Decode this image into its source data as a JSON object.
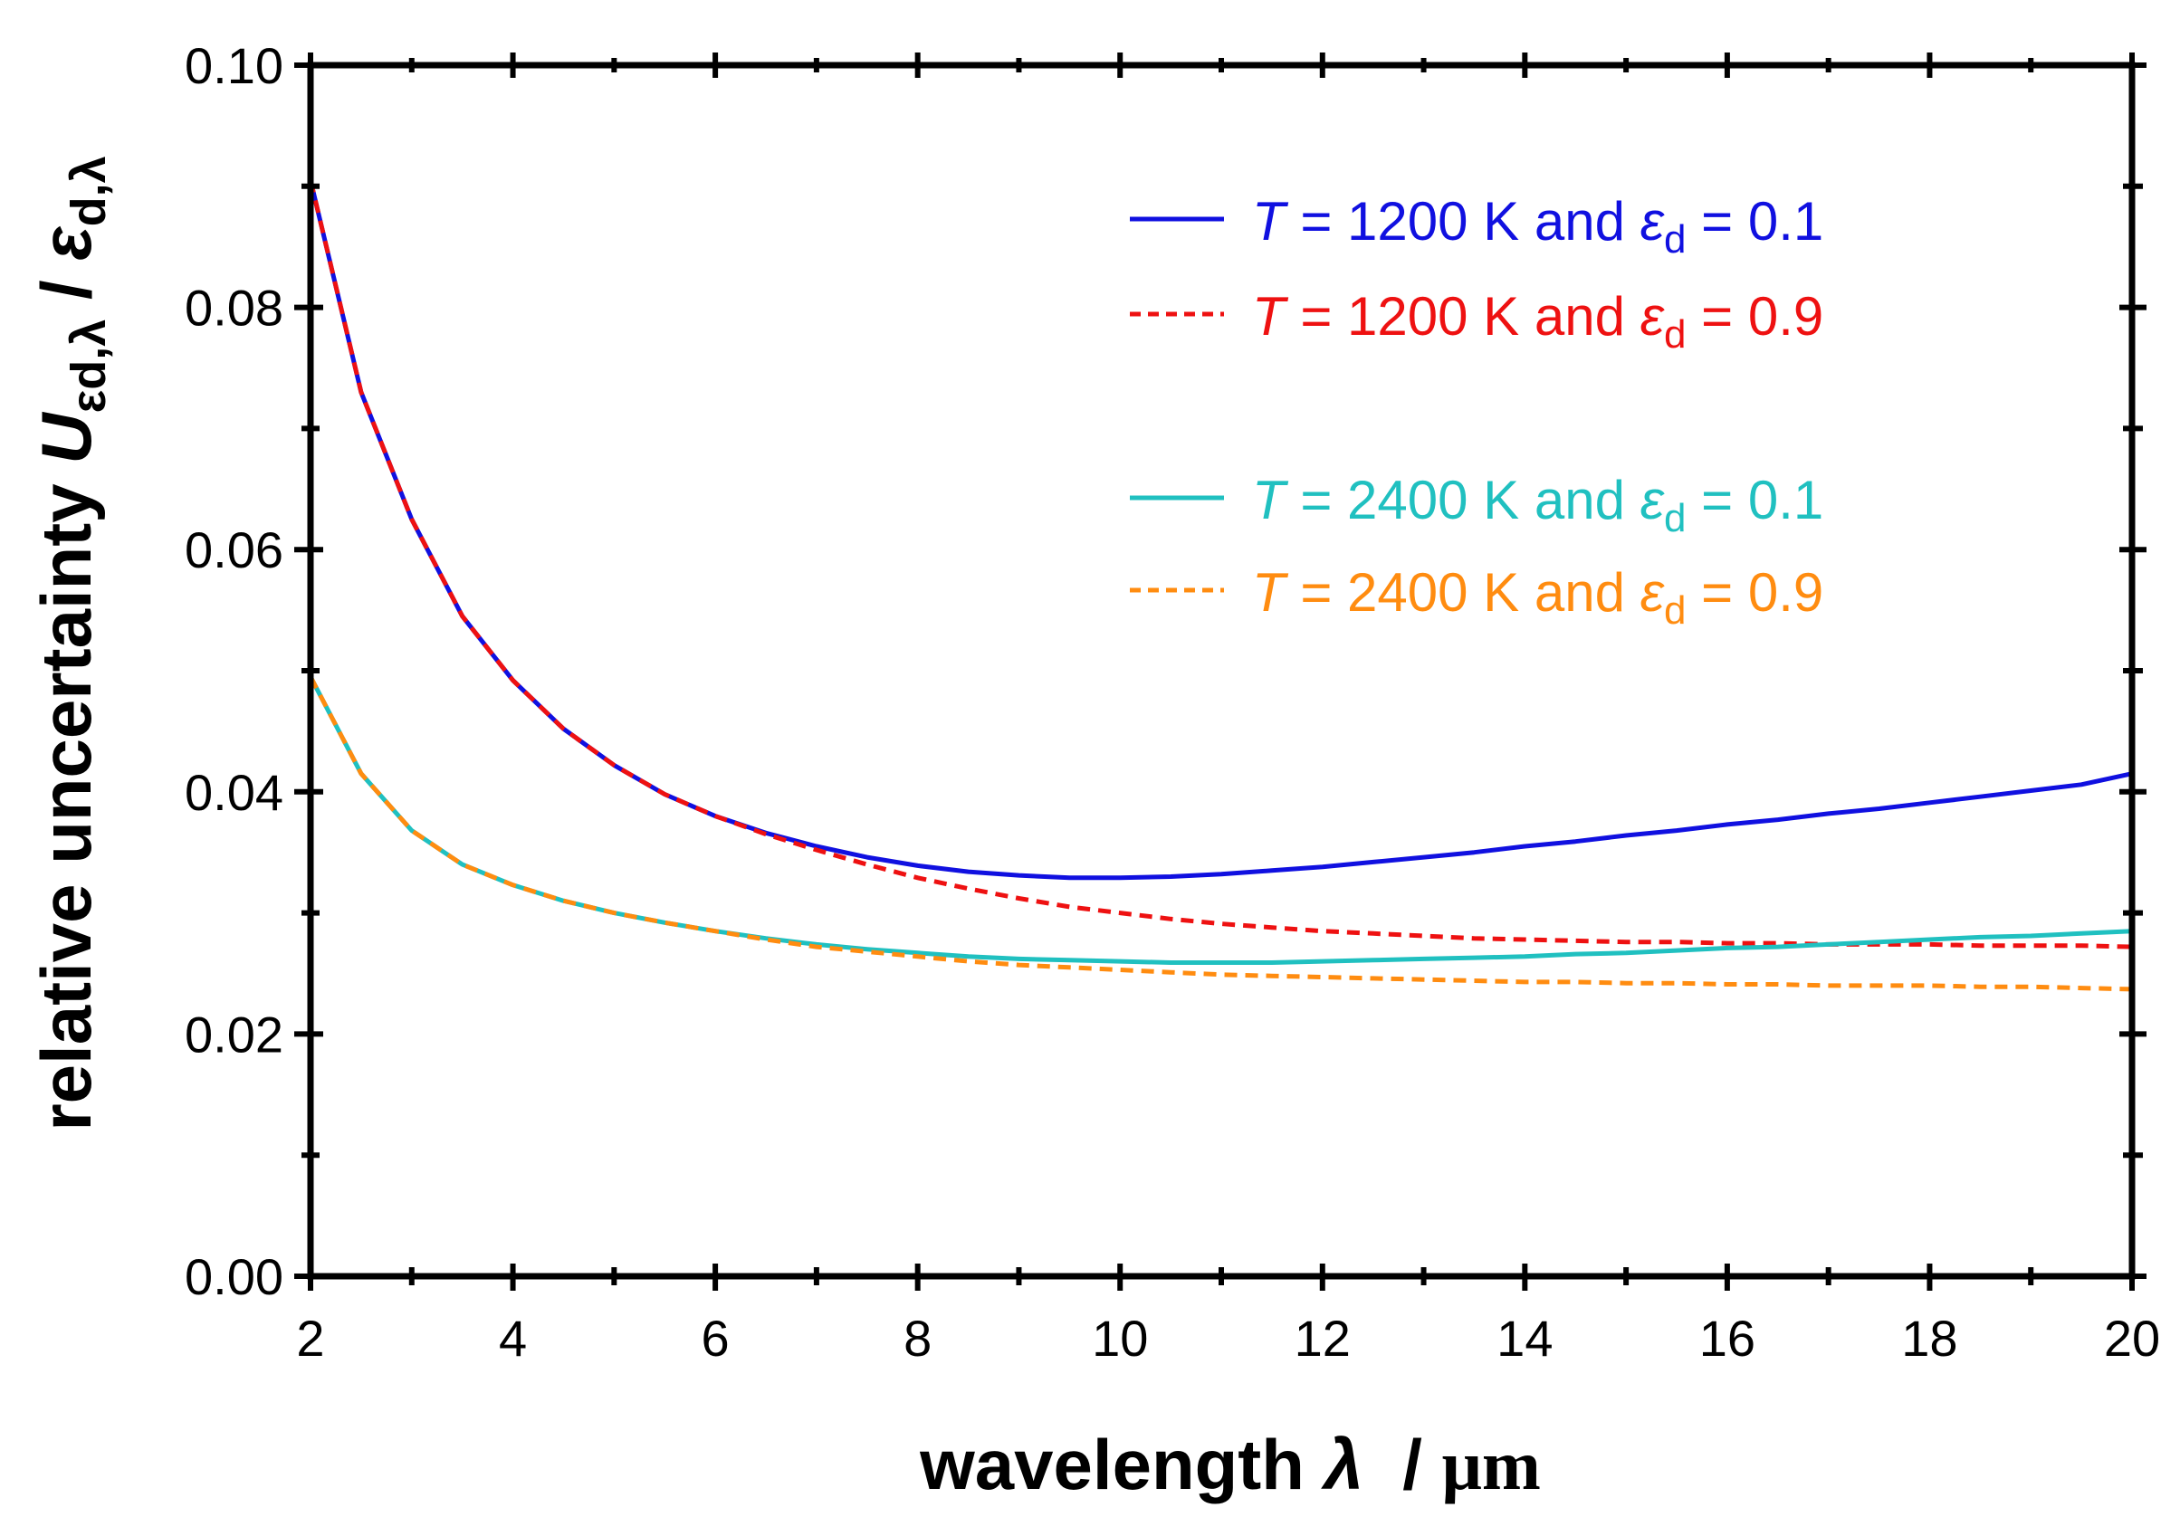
{
  "chart_data": {
    "type": "line",
    "xlabel": {
      "main": "wavelength ",
      "symbol": "λ",
      "sep": "  / ",
      "unit": "μm"
    },
    "ylabel": {
      "main": "relative uncertainty ",
      "U": "U",
      "U_sub": "εd,λ",
      "sep": " / ",
      "eps": "ε",
      "eps_sub": "d,λ"
    },
    "xlim": [
      2,
      20
    ],
    "ylim": [
      0.0,
      0.1
    ],
    "x_ticks": [
      2,
      4,
      6,
      8,
      10,
      12,
      14,
      16,
      18,
      20
    ],
    "x_tick_labels": [
      "2",
      "4",
      "6",
      "8",
      "10",
      "12",
      "14",
      "16",
      "18",
      "20"
    ],
    "y_ticks": [
      0.0,
      0.02,
      0.04,
      0.06,
      0.08,
      0.1
    ],
    "y_tick_labels": [
      "0.00",
      "0.02",
      "0.04",
      "0.06",
      "0.08",
      "0.10"
    ],
    "grid": false,
    "legend_position": "top-right",
    "series": [
      {
        "name": "T = 1200 K and εd = 0.1",
        "legend": {
          "T": "T",
          "mid": " = 1200 K and ",
          "eps": "ε",
          "sub": "d",
          "end": " = 0.1"
        },
        "color": "#1010e0",
        "dash": "solid",
        "x": [
          2,
          2.5,
          3,
          3.5,
          4,
          4.5,
          5,
          5.5,
          6,
          6.5,
          7,
          7.5,
          8,
          8.5,
          9,
          9.5,
          10,
          10.5,
          11,
          11.5,
          12,
          12.5,
          13,
          13.5,
          14,
          14.5,
          15,
          15.5,
          16,
          16.5,
          17,
          17.5,
          18,
          18.5,
          19,
          19.5,
          20
        ],
        "y": [
          0.0905,
          0.073,
          0.0625,
          0.0545,
          0.0492,
          0.0452,
          0.0422,
          0.0398,
          0.038,
          0.0366,
          0.0355,
          0.0346,
          0.0339,
          0.0334,
          0.0331,
          0.0329,
          0.0329,
          0.033,
          0.0332,
          0.0335,
          0.0338,
          0.0342,
          0.0346,
          0.035,
          0.0355,
          0.0359,
          0.0364,
          0.0368,
          0.0373,
          0.0377,
          0.0382,
          0.0386,
          0.0391,
          0.0396,
          0.0401,
          0.0406,
          0.0415
        ]
      },
      {
        "name": "T = 1200 K and εd = 0.9",
        "legend": {
          "T": "T",
          "mid": " = 1200 K and ",
          "eps": "ε",
          "sub": "d",
          "end": " = 0.9"
        },
        "color": "#ee1111",
        "dash": "dashed",
        "x": [
          2,
          2.5,
          3,
          3.5,
          4,
          4.5,
          5,
          5.5,
          6,
          6.5,
          7,
          7.5,
          8,
          8.5,
          9,
          9.5,
          10,
          10.5,
          11,
          11.5,
          12,
          12.5,
          13,
          13.5,
          14,
          14.5,
          15,
          15.5,
          16,
          16.5,
          17,
          17.5,
          18,
          18.5,
          19,
          19.5,
          20
        ],
        "y": [
          0.0905,
          0.073,
          0.0625,
          0.0545,
          0.0492,
          0.0452,
          0.0422,
          0.0398,
          0.038,
          0.0365,
          0.0352,
          0.034,
          0.0329,
          0.032,
          0.0312,
          0.0305,
          0.03,
          0.0295,
          0.0291,
          0.0288,
          0.0285,
          0.0283,
          0.0281,
          0.0279,
          0.0278,
          0.0277,
          0.0276,
          0.0276,
          0.0275,
          0.0275,
          0.0274,
          0.0274,
          0.0274,
          0.0273,
          0.0273,
          0.0273,
          0.0272
        ]
      },
      {
        "name": "T = 2400 K and εd = 0.1",
        "legend": {
          "T": "T",
          "mid": " = 2400 K and ",
          "eps": "ε",
          "sub": "d",
          "end": " = 0.1"
        },
        "color": "#20c0c0",
        "dash": "solid",
        "x": [
          2,
          2.5,
          3,
          3.5,
          4,
          4.5,
          5,
          5.5,
          6,
          6.5,
          7,
          7.5,
          8,
          8.5,
          9,
          9.5,
          10,
          10.5,
          11,
          11.5,
          12,
          12.5,
          13,
          13.5,
          14,
          14.5,
          15,
          15.5,
          16,
          16.5,
          17,
          17.5,
          18,
          18.5,
          19,
          19.5,
          20
        ],
        "y": [
          0.0495,
          0.0415,
          0.0368,
          0.034,
          0.0323,
          0.031,
          0.03,
          0.0292,
          0.0285,
          0.0279,
          0.0274,
          0.027,
          0.0267,
          0.0264,
          0.0262,
          0.0261,
          0.026,
          0.0259,
          0.0259,
          0.0259,
          0.026,
          0.0261,
          0.0262,
          0.0263,
          0.0264,
          0.0266,
          0.0267,
          0.0269,
          0.0271,
          0.0272,
          0.0274,
          0.0276,
          0.0278,
          0.028,
          0.0281,
          0.0283,
          0.0285
        ]
      },
      {
        "name": "T = 2400 K and εd = 0.9",
        "legend": {
          "T": "T",
          "mid": " = 2400 K and ",
          "eps": "ε",
          "sub": "d",
          "end": " = 0.9"
        },
        "color": "#ff8c10",
        "dash": "dashed",
        "x": [
          2,
          2.5,
          3,
          3.5,
          4,
          4.5,
          5,
          5.5,
          6,
          6.5,
          7,
          7.5,
          8,
          8.5,
          9,
          9.5,
          10,
          10.5,
          11,
          11.5,
          12,
          12.5,
          13,
          13.5,
          14,
          14.5,
          15,
          15.5,
          16,
          16.5,
          17,
          17.5,
          18,
          18.5,
          19,
          19.5,
          20
        ],
        "y": [
          0.0495,
          0.0415,
          0.0368,
          0.034,
          0.0323,
          0.031,
          0.03,
          0.0292,
          0.0285,
          0.0278,
          0.0272,
          0.0268,
          0.0264,
          0.026,
          0.0257,
          0.0255,
          0.0253,
          0.0251,
          0.0249,
          0.0248,
          0.0247,
          0.0246,
          0.0245,
          0.0244,
          0.0243,
          0.0243,
          0.0242,
          0.0242,
          0.0241,
          0.0241,
          0.024,
          0.024,
          0.024,
          0.0239,
          0.0239,
          0.0238,
          0.0237
        ]
      }
    ]
  }
}
